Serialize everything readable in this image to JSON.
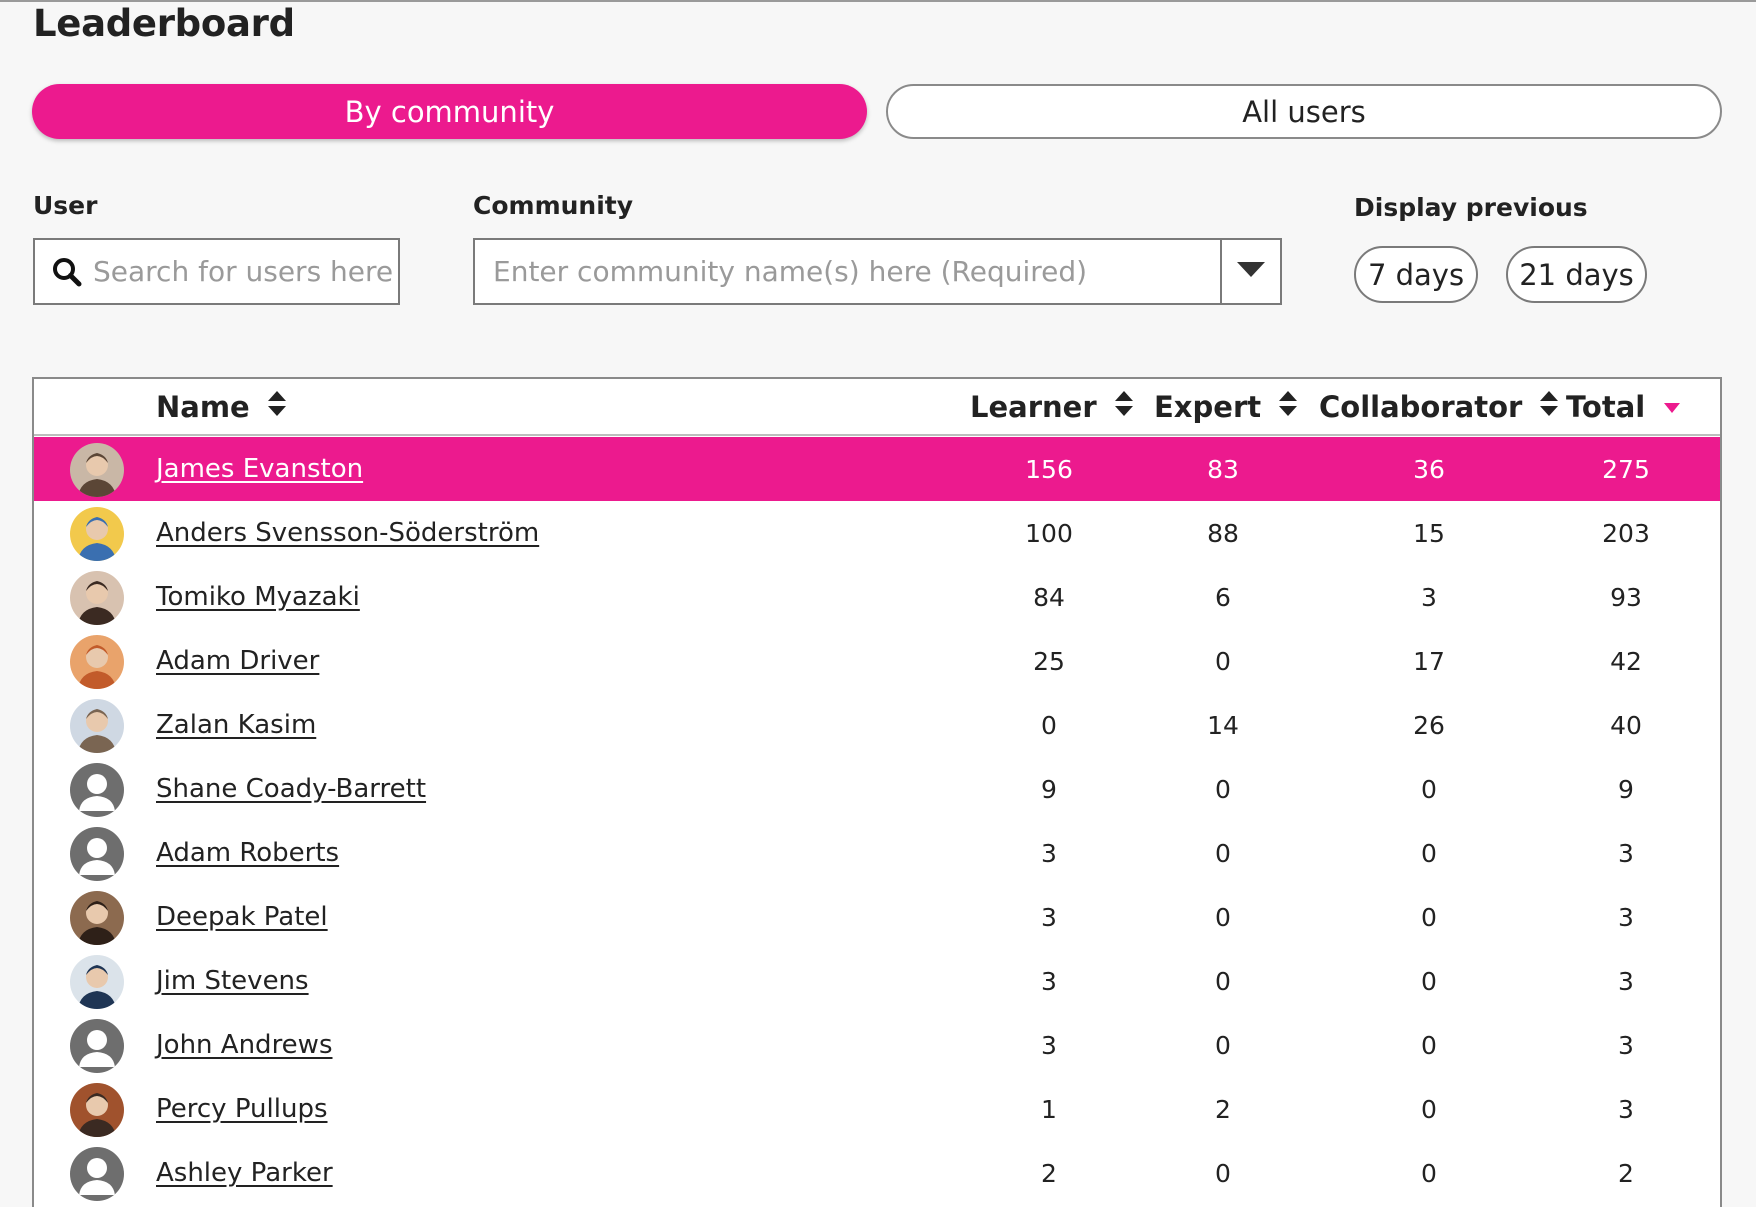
{
  "page": {
    "title": "Leaderboard"
  },
  "toggle": {
    "by_community": "By community",
    "all_users": "All users"
  },
  "filters": {
    "user_label": "User",
    "user_placeholder": "Search for users here",
    "community_label": "Community",
    "community_placeholder": "Enter community name(s) here (Required)",
    "display_label": "Display previous",
    "day_options": [
      "7 days",
      "21 days"
    ]
  },
  "table": {
    "columns": {
      "name": "Name",
      "learner": "Learner",
      "expert": "Expert",
      "collaborator": "Collaborator",
      "total": "Total"
    },
    "sorted_by": "total",
    "rows": [
      {
        "name": "James Evanston",
        "learner": "156",
        "expert": "83",
        "collaborator": "36",
        "total": "275",
        "avatar": "photo",
        "highlighted": true
      },
      {
        "name": "Anders Svensson-Söderström",
        "learner": "100",
        "expert": "88",
        "collaborator": "15",
        "total": "203",
        "avatar": "photo"
      },
      {
        "name": "Tomiko Myazaki",
        "learner": "84",
        "expert": "6",
        "collaborator": "3",
        "total": "93",
        "avatar": "photo"
      },
      {
        "name": "Adam Driver",
        "learner": "25",
        "expert": "0",
        "collaborator": "17",
        "total": "42",
        "avatar": "photo"
      },
      {
        "name": "Zalan Kasim",
        "learner": "0",
        "expert": "14",
        "collaborator": "26",
        "total": "40",
        "avatar": "photo"
      },
      {
        "name": "Shane Coady-Barrett",
        "learner": "9",
        "expert": "0",
        "collaborator": "0",
        "total": "9",
        "avatar": "default-user-icon"
      },
      {
        "name": "Adam Roberts",
        "learner": "3",
        "expert": "0",
        "collaborator": "0",
        "total": "3",
        "avatar": "default-user-icon"
      },
      {
        "name": "Deepak Patel",
        "learner": "3",
        "expert": "0",
        "collaborator": "0",
        "total": "3",
        "avatar": "photo"
      },
      {
        "name": "Jim Stevens",
        "learner": "3",
        "expert": "0",
        "collaborator": "0",
        "total": "3",
        "avatar": "photo"
      },
      {
        "name": "John Andrews",
        "learner": "3",
        "expert": "0",
        "collaborator": "0",
        "total": "3",
        "avatar": "default-user-icon"
      },
      {
        "name": "Percy Pullups",
        "learner": "1",
        "expert": "2",
        "collaborator": "0",
        "total": "3",
        "avatar": "photo"
      },
      {
        "name": "Ashley Parker",
        "learner": "2",
        "expert": "0",
        "collaborator": "0",
        "total": "2",
        "avatar": "default-user-icon"
      }
    ]
  },
  "colors": {
    "accent": "#ec1a8e",
    "border": "#7a7a7a",
    "background": "#f7f7f7"
  }
}
